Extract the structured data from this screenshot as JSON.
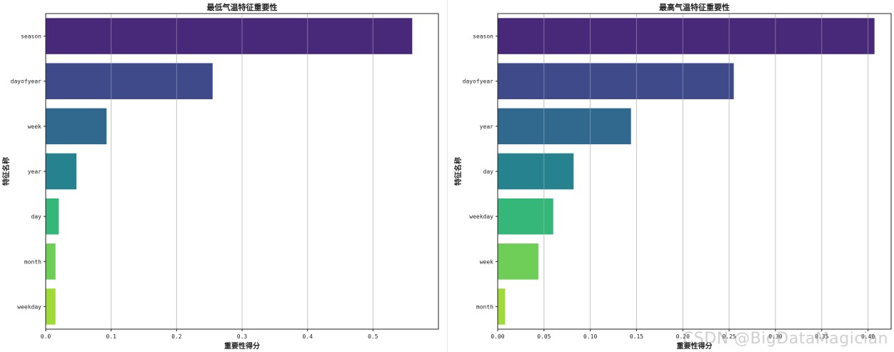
{
  "watermark": "CSDN @BigDataMagician",
  "chart_data": [
    {
      "type": "bar",
      "orientation": "horizontal",
      "title": "最低气温特征重要性",
      "xlabel": "重要性得分",
      "ylabel": "特征名称",
      "categories": [
        "season",
        "dayofyear",
        "week",
        "year",
        "day",
        "month",
        "weekday"
      ],
      "values": [
        0.56,
        0.255,
        0.093,
        0.047,
        0.02,
        0.015,
        0.015
      ],
      "colors": [
        "#482878",
        "#3e4a89",
        "#31688e",
        "#26828e",
        "#35b779",
        "#6ece58",
        "#a0da39"
      ],
      "xlim": [
        0,
        0.6
      ],
      "xticks": [
        0,
        0.1,
        0.2,
        0.3,
        0.4,
        0.5
      ],
      "xtick_labels": [
        "0.0",
        "0.1",
        "0.2",
        "0.3",
        "0.4",
        "0.5"
      ],
      "grid": "x"
    },
    {
      "type": "bar",
      "orientation": "horizontal",
      "title": "最高气温特征重要性",
      "xlabel": "重要性得分",
      "ylabel": "特征名称",
      "categories": [
        "season",
        "dayofyear",
        "year",
        "day",
        "weekday",
        "week",
        "month"
      ],
      "values": [
        0.407,
        0.255,
        0.144,
        0.082,
        0.06,
        0.044,
        0.008
      ],
      "colors": [
        "#482878",
        "#3e4a89",
        "#31688e",
        "#26828e",
        "#35b779",
        "#6ece58",
        "#a0da39"
      ],
      "xlim": [
        0,
        0.425
      ],
      "xticks": [
        0,
        0.05,
        0.1,
        0.15,
        0.2,
        0.25,
        0.3,
        0.35,
        0.4
      ],
      "xtick_labels": [
        "0.00",
        "0.05",
        "0.10",
        "0.15",
        "0.20",
        "0.25",
        "0.30",
        "0.35",
        "0.40"
      ],
      "grid": "x"
    }
  ]
}
